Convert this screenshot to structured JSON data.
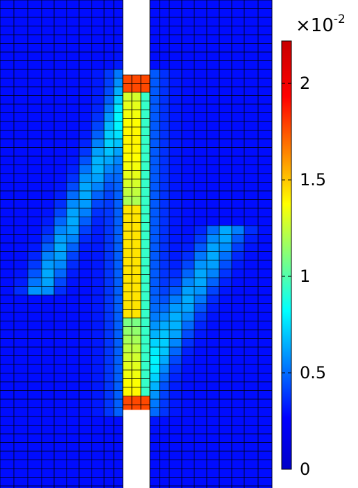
{
  "colorbar": {
    "multiplier": {
      "prefix": "×10",
      "exponent": "-2"
    },
    "range": [
      0,
      0.0222
    ],
    "ticks": [
      {
        "label": "0",
        "value": 0
      },
      {
        "label": "0.5",
        "value": 0.005
      },
      {
        "label": "1",
        "value": 0.01
      },
      {
        "label": "1.5",
        "value": 0.015
      },
      {
        "label": "2",
        "value": 0.02
      }
    ],
    "colormap": "jet",
    "stops": [
      "#00008f",
      "#0000ff",
      "#00ffff",
      "#ffff00",
      "#ff0000",
      "#800000"
    ]
  },
  "field": {
    "background_value": 0
  }
}
